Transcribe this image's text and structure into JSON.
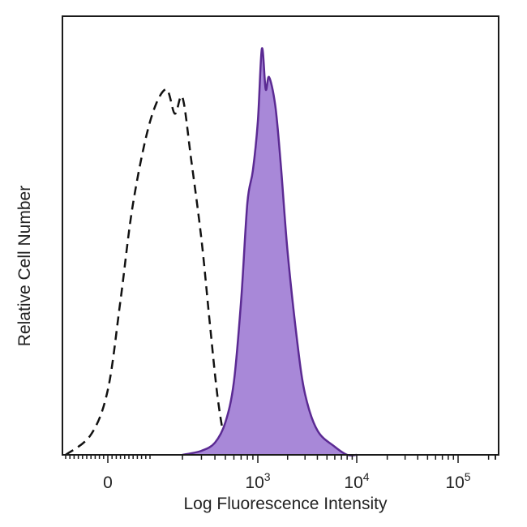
{
  "chart_data": {
    "type": "area",
    "title": "",
    "xlabel": "Log Fluorescence Intensity",
    "ylabel": "Relative Cell Number",
    "x_scale": "biexponential",
    "x_ticks": [
      {
        "base": "0",
        "exp": ""
      },
      {
        "base": "10",
        "exp": "3"
      },
      {
        "base": "10",
        "exp": "4"
      },
      {
        "base": "10",
        "exp": "5"
      }
    ],
    "ylim": [
      0,
      100
    ],
    "grid": false,
    "legend": "none",
    "series": [
      {
        "style": "dashed-outline",
        "color": "#111111",
        "x": [
          -100,
          -40,
          0,
          30,
          60,
          100,
          140,
          170,
          200,
          240,
          300,
          360,
          420,
          480,
          540
        ],
        "y": [
          0,
          5,
          16,
          38,
          62,
          82,
          90,
          84,
          88,
          73,
          53,
          32,
          15,
          5,
          0
        ]
      },
      {
        "style": "filled",
        "color": "#5b2a93",
        "fill": "#a888d8",
        "x": [
          200,
          300,
          400,
          500,
          600,
          700,
          800,
          900,
          1000,
          1100,
          1200,
          1300,
          1500,
          1700,
          2000,
          2500,
          3000,
          4000,
          6000,
          8000,
          10000
        ],
        "y": [
          0,
          1,
          3,
          8,
          18,
          38,
          62,
          70,
          82,
          100,
          90,
          93,
          86,
          72,
          50,
          28,
          15,
          6,
          2,
          0,
          0
        ]
      }
    ]
  }
}
